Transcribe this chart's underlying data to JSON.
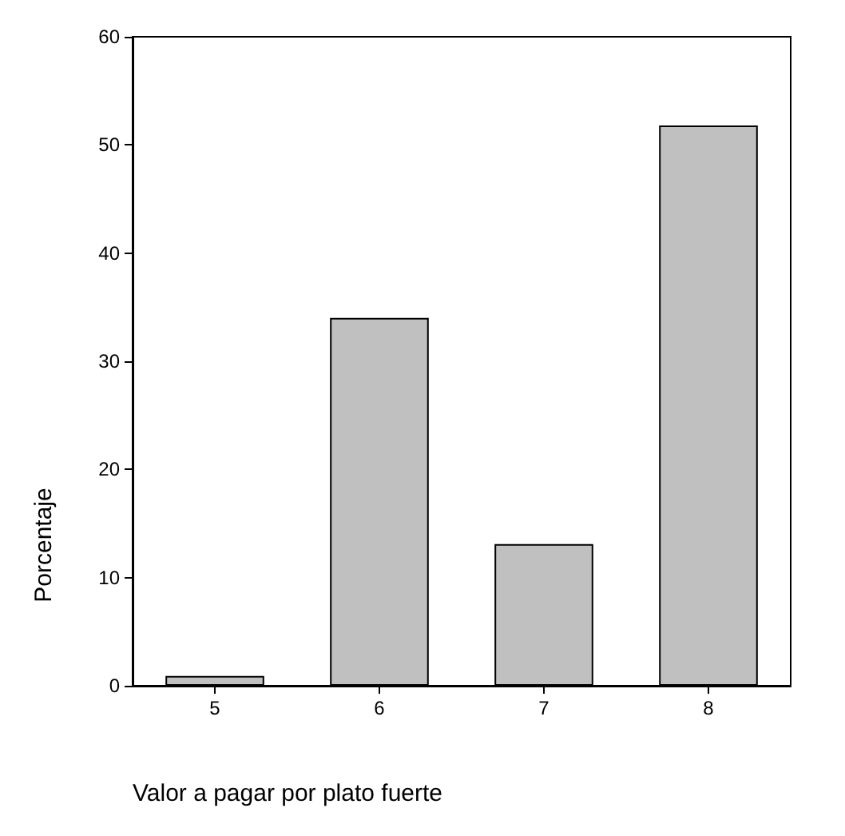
{
  "chart_data": {
    "type": "bar",
    "xlabel": "Valor a pagar por plato fuerte",
    "ylabel": "Porcentaje",
    "categories": [
      "5",
      "6",
      "7",
      "8"
    ],
    "values": [
      0.9,
      34,
      13.1,
      51.8
    ],
    "color": "#c0c0c0",
    "ylim": [
      0,
      60
    ],
    "yticks": [
      0,
      10,
      20,
      30,
      40,
      50,
      60
    ],
    "grid": false
  }
}
